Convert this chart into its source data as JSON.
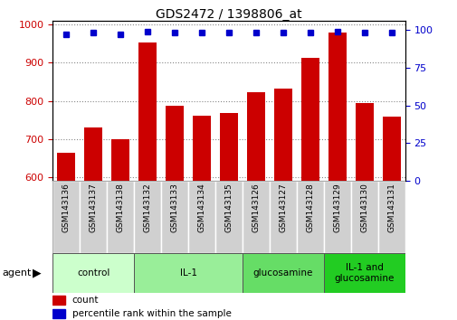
{
  "title": "GDS2472 / 1398806_at",
  "samples": [
    "GSM143136",
    "GSM143137",
    "GSM143138",
    "GSM143132",
    "GSM143133",
    "GSM143134",
    "GSM143135",
    "GSM143126",
    "GSM143127",
    "GSM143128",
    "GSM143129",
    "GSM143130",
    "GSM143131"
  ],
  "counts": [
    663,
    730,
    700,
    952,
    788,
    762,
    768,
    822,
    831,
    913,
    978,
    793,
    758
  ],
  "percentiles": [
    97,
    98,
    97,
    99,
    98,
    98,
    98,
    98,
    98,
    98,
    99,
    98,
    98
  ],
  "bar_color": "#cc0000",
  "dot_color": "#0000cc",
  "ylim_left": [
    590,
    1010
  ],
  "ylim_right": [
    0,
    106
  ],
  "yticks_left": [
    600,
    700,
    800,
    900,
    1000
  ],
  "yticks_right": [
    0,
    25,
    50,
    75,
    100
  ],
  "groups": [
    {
      "label": "control",
      "count": 3,
      "color": "#ccffcc"
    },
    {
      "label": "IL-1",
      "count": 4,
      "color": "#99ee99"
    },
    {
      "label": "glucosamine",
      "count": 3,
      "color": "#66dd66"
    },
    {
      "label": "IL-1 and\nglucosamine",
      "count": 3,
      "color": "#22cc22"
    }
  ],
  "agent_label": "agent",
  "legend_count_label": "count",
  "legend_pct_label": "percentile rank within the sample",
  "tick_label_color_left": "#cc0000",
  "tick_label_color_right": "#0000cc",
  "sample_box_color": "#d0d0d0",
  "grid_color": "#888888"
}
